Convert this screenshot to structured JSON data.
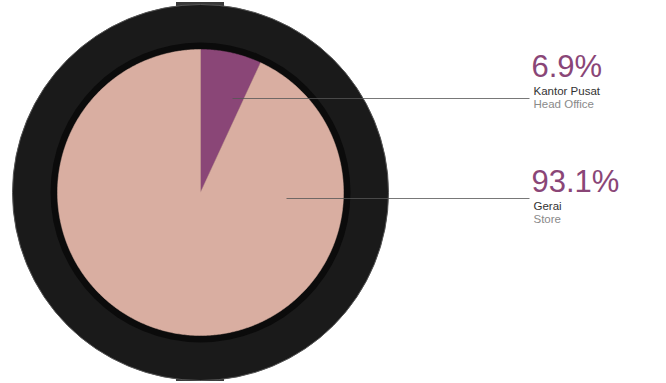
{
  "chart_data": {
    "type": "pie",
    "categories": [
      "Kantor Pusat",
      "Gerai"
    ],
    "category_translations": [
      "Head Office",
      "Store"
    ],
    "values": [
      6.9,
      93.1
    ],
    "value_labels": [
      "6.9%",
      "93.1%"
    ],
    "colors": [
      "#8a4677",
      "#d9ae a1"
    ],
    "data_labels": true
  }
}
